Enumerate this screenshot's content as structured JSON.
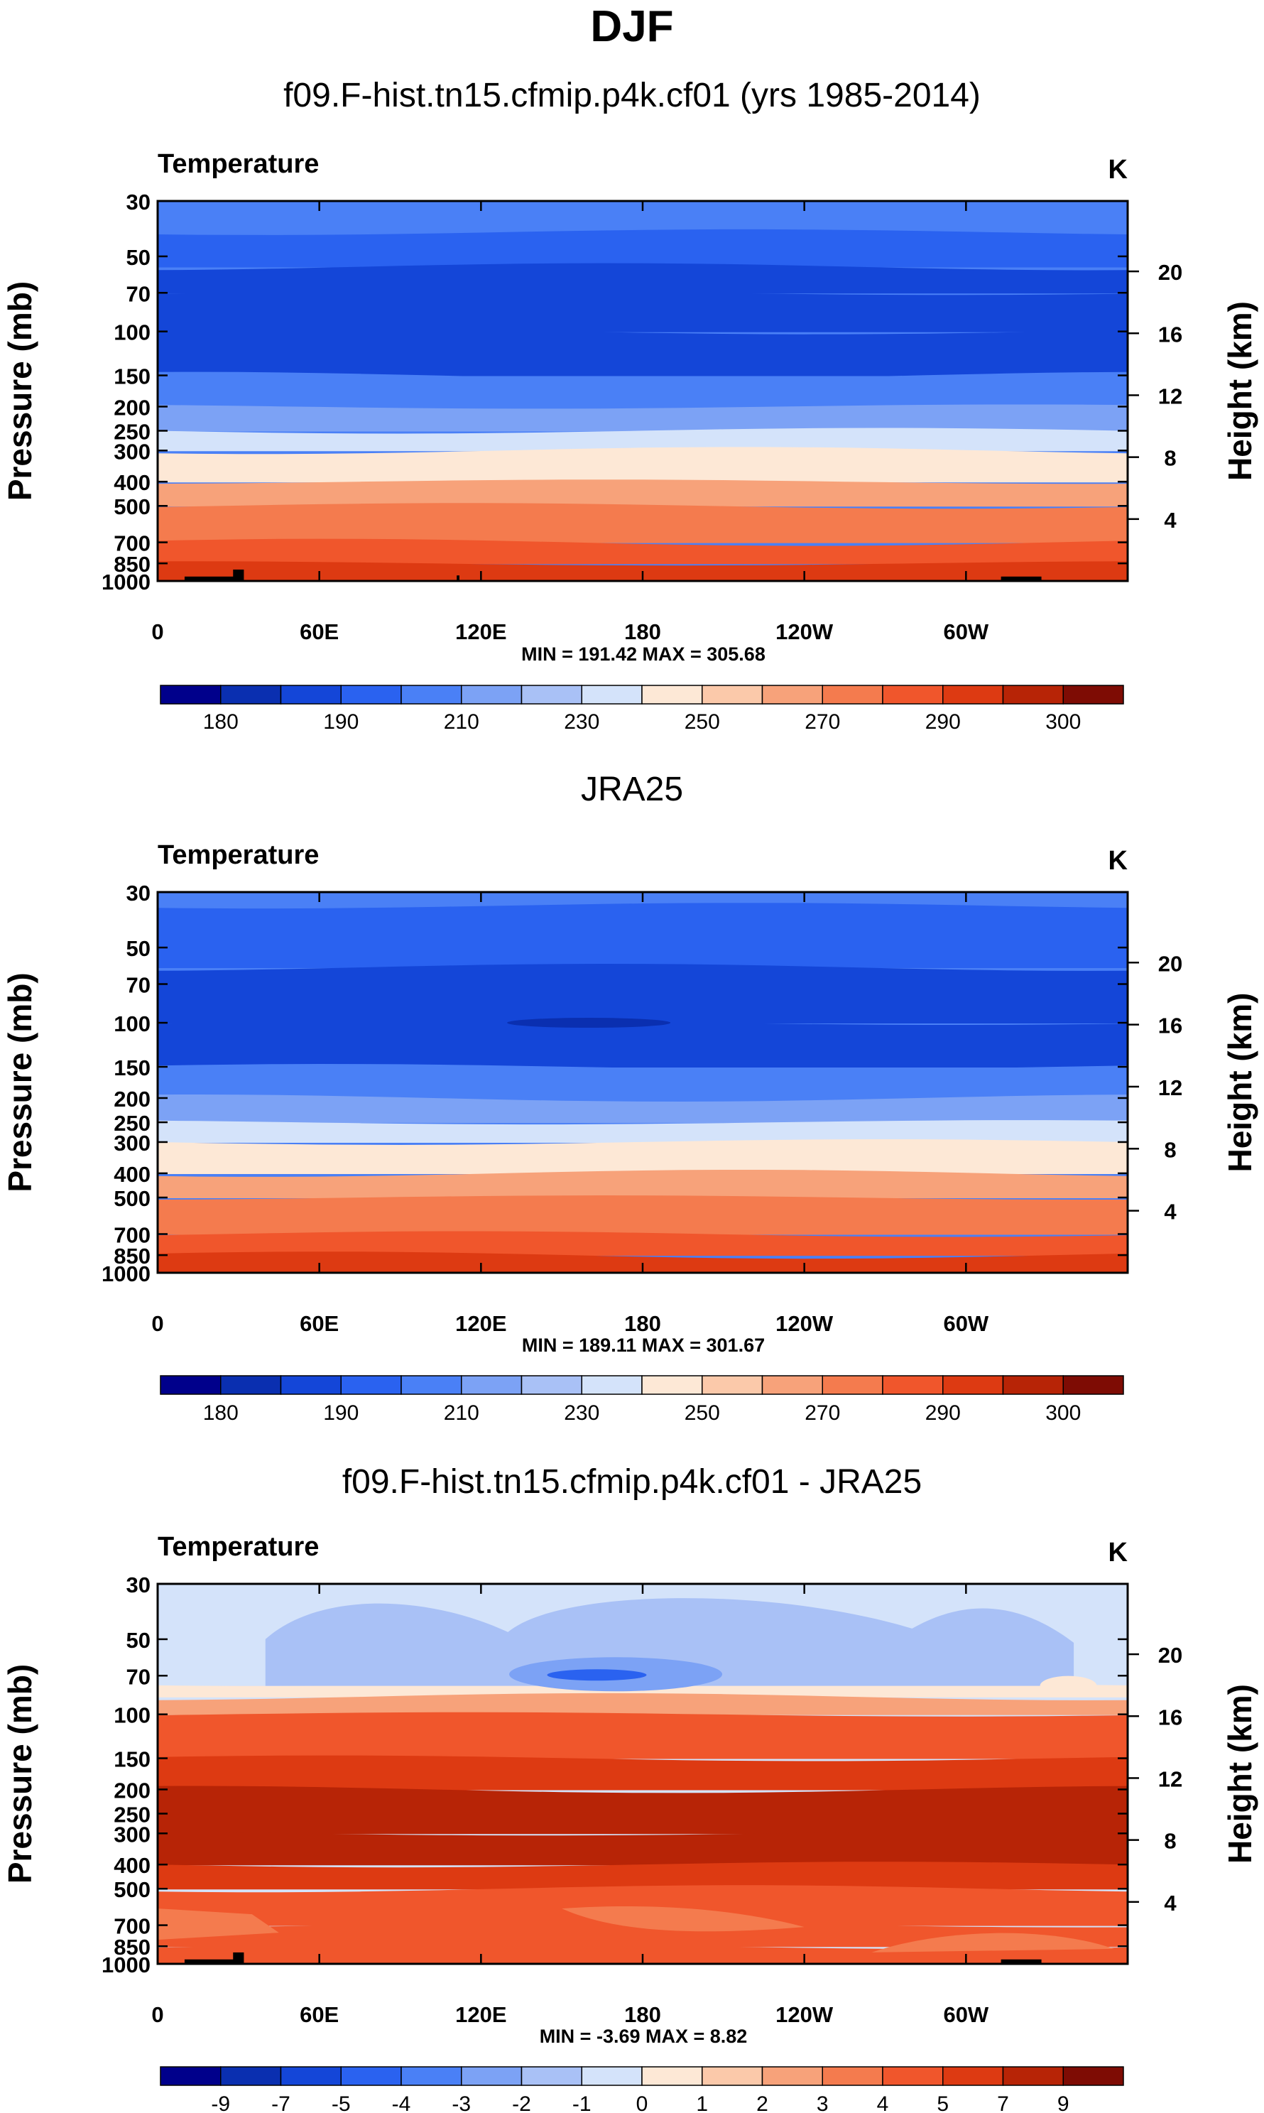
{
  "figure_title": "DJF",
  "chart_data": [
    {
      "type": "heatmap",
      "subtitle": "f09.F-hist.tn15.cfmip.p4k.cf01 (yrs 1985-2014)",
      "variable": "Temperature",
      "units": "K",
      "ylabel": "Pressure (mb)",
      "ylabel_right": "Height (km)",
      "x_ticks": [
        "0",
        "60E",
        "120E",
        "180",
        "120W",
        "60W"
      ],
      "x_tick_lon": [
        0,
        60,
        120,
        180,
        240,
        300
      ],
      "xlim": [
        0,
        360
      ],
      "y_ticks": [
        "30",
        "50",
        "70",
        "100",
        "150",
        "200",
        "250",
        "300",
        "400",
        "500",
        "700",
        "850",
        "1000"
      ],
      "y_tick_values": [
        30,
        50,
        70,
        100,
        150,
        200,
        250,
        300,
        400,
        500,
        700,
        850,
        1000
      ],
      "ylim": [
        1000,
        30
      ],
      "height_ticks": [
        "20",
        "16",
        "12",
        "8",
        "4"
      ],
      "height_tick_values": [
        20,
        16,
        12,
        8,
        4
      ],
      "stats_text": "MIN = 191.42  MAX = 305.68",
      "min": 191.42,
      "max": 305.68,
      "colorbar_labels": [
        "180",
        "190",
        "210",
        "230",
        "250",
        "270",
        "290",
        "300"
      ],
      "colorbar_colors": [
        "#00008b",
        "#0a2fb0",
        "#1446d8",
        "#2a62f0",
        "#4a80f6",
        "#7ca2f5",
        "#a9c1f6",
        "#d4e3fa",
        "#fde8d6",
        "#fbc9aa",
        "#f7a27a",
        "#f47b4e",
        "#f0562c",
        "#dd3a12",
        "#b72406",
        "#7e0c04"
      ],
      "profile_pressure": [
        30,
        40,
        55,
        70,
        100,
        150,
        200,
        250,
        300,
        400,
        500,
        700,
        850,
        1000
      ],
      "profile_class": [
        4,
        3,
        2,
        2,
        2,
        4,
        5,
        7,
        8,
        10,
        11,
        12,
        13,
        14
      ],
      "terrain": [
        [
          10,
          30,
          960
        ],
        [
          28,
          32,
          900
        ],
        [
          111,
          112,
          950
        ],
        [
          313,
          328,
          960
        ]
      ]
    },
    {
      "type": "heatmap",
      "subtitle": "JRA25",
      "variable": "Temperature",
      "units": "K",
      "ylabel": "Pressure (mb)",
      "ylabel_right": "Height (km)",
      "x_ticks": [
        "0",
        "60E",
        "120E",
        "180",
        "120W",
        "60W"
      ],
      "x_tick_lon": [
        0,
        60,
        120,
        180,
        240,
        300
      ],
      "xlim": [
        0,
        360
      ],
      "y_ticks": [
        "30",
        "50",
        "70",
        "100",
        "150",
        "200",
        "250",
        "300",
        "400",
        "500",
        "700",
        "850",
        "1000"
      ],
      "y_tick_values": [
        30,
        50,
        70,
        100,
        150,
        200,
        250,
        300,
        400,
        500,
        700,
        850,
        1000
      ],
      "ylim": [
        1000,
        30
      ],
      "height_ticks": [
        "20",
        "16",
        "12",
        "8",
        "4"
      ],
      "height_tick_values": [
        20,
        16,
        12,
        8,
        4
      ],
      "stats_text": "MIN = 189.11  MAX = 301.67",
      "min": 189.11,
      "max": 301.67,
      "colorbar_labels": [
        "180",
        "190",
        "210",
        "230",
        "250",
        "270",
        "290",
        "300"
      ],
      "colorbar_colors": [
        "#00008b",
        "#0a2fb0",
        "#1446d8",
        "#2a62f0",
        "#4a80f6",
        "#7ca2f5",
        "#a9c1f6",
        "#d4e3fa",
        "#fde8d6",
        "#fbc9aa",
        "#f7a27a",
        "#f47b4e",
        "#f0562c",
        "#dd3a12",
        "#b72406",
        "#7e0c04"
      ],
      "profile_pressure": [
        30,
        34,
        60,
        100,
        150,
        200,
        250,
        300,
        400,
        500,
        700,
        850,
        1000
      ],
      "profile_class": [
        4,
        3,
        2,
        2,
        4,
        5,
        7,
        8,
        10,
        11,
        12,
        13,
        14
      ],
      "cold_spot": [
        160,
        100
      ],
      "terrain": []
    },
    {
      "type": "heatmap",
      "subtitle": "f09.F-hist.tn15.cfmip.p4k.cf01 - JRA25",
      "variable": "Temperature",
      "units": "K",
      "ylabel": "Pressure (mb)",
      "ylabel_right": "Height (km)",
      "x_ticks": [
        "0",
        "60E",
        "120E",
        "180",
        "120W",
        "60W"
      ],
      "x_tick_lon": [
        0,
        60,
        120,
        180,
        240,
        300
      ],
      "xlim": [
        0,
        360
      ],
      "y_ticks": [
        "30",
        "50",
        "70",
        "100",
        "150",
        "200",
        "250",
        "300",
        "400",
        "500",
        "700",
        "850",
        "1000"
      ],
      "y_tick_values": [
        30,
        50,
        70,
        100,
        150,
        200,
        250,
        300,
        400,
        500,
        700,
        850,
        1000
      ],
      "ylim": [
        1000,
        30
      ],
      "height_ticks": [
        "20",
        "16",
        "12",
        "8",
        "4"
      ],
      "height_tick_values": [
        20,
        16,
        12,
        8,
        4
      ],
      "stats_text": "MIN =  -3.69  MAX =   8.82",
      "min": -3.69,
      "max": 8.82,
      "colorbar_labels": [
        "-9",
        "-7",
        "-5",
        "-4",
        "-3",
        "-2",
        "-1",
        "0",
        "1",
        "2",
        "3",
        "4",
        "5",
        "7",
        "9"
      ],
      "colorbar_colors": [
        "#00008b",
        "#0a2fb0",
        "#1446d8",
        "#2a62f0",
        "#4a80f6",
        "#7ca2f5",
        "#a9c1f6",
        "#d4e3fa",
        "#fde8d6",
        "#fbc9aa",
        "#f7a27a",
        "#f47b4e",
        "#f0562c",
        "#dd3a12",
        "#b72406",
        "#7e0c04"
      ],
      "profile_pressure": [
        30,
        75,
        85,
        100,
        150,
        200,
        300,
        400,
        500,
        700,
        850,
        1000
      ],
      "profile_class": [
        7,
        8,
        10,
        12,
        13,
        14,
        14,
        13,
        12,
        12,
        12,
        12
      ],
      "diff_patches": true,
      "terrain": [
        [
          10,
          30,
          960
        ],
        [
          28,
          32,
          900
        ],
        [
          313,
          328,
          960
        ]
      ]
    }
  ]
}
